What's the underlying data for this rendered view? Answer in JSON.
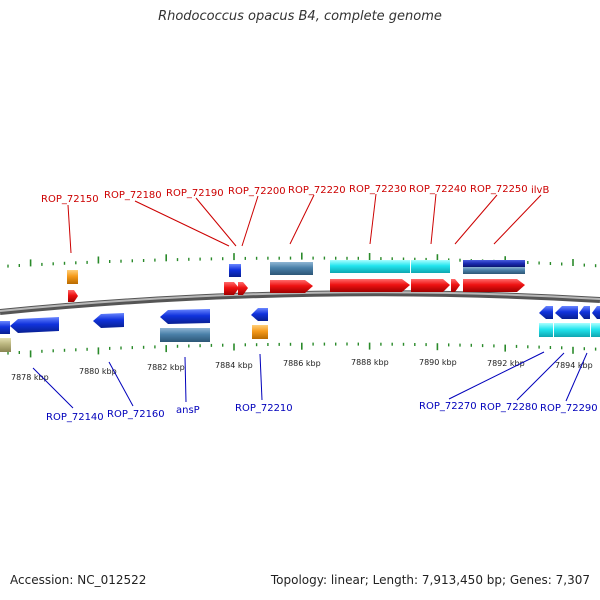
{
  "title": "Rhodococcus opacus B4, complete genome",
  "accession": "Accession: NC_012522",
  "stats": "Topology: linear; Length: 7,913,450 bp; Genes: 7,307",
  "colors": {
    "forward_cds": "#ee1111",
    "reverse_cds": "#1133dd",
    "cyan_block": "#22e5ee",
    "steel_block": "#4a80a8",
    "orange_block": "#f59a1a",
    "olive_block": "#b9b47e",
    "backbone": "#888888",
    "ticks": "#2a8a2a"
  },
  "scale_labels": [
    "7878 kbp",
    "7880 kbp",
    "7882 kbp",
    "7884 kbp",
    "7886 kbp",
    "7888 kbp",
    "7890 kbp",
    "7892 kbp",
    "7894 kbp"
  ],
  "top_gene_labels": [
    "ROP_72150",
    "ROP_72180",
    "ROP_72190",
    "ROP_72200",
    "ROP_72220",
    "ROP_72230",
    "ROP_72240",
    "ROP_72250",
    "ilvB"
  ],
  "bottom_gene_labels": [
    "ROP_72140",
    "ROP_72160",
    "ansP",
    "ROP_72210",
    "ROP_72270",
    "ROP_72280",
    "ROP_72290"
  ]
}
